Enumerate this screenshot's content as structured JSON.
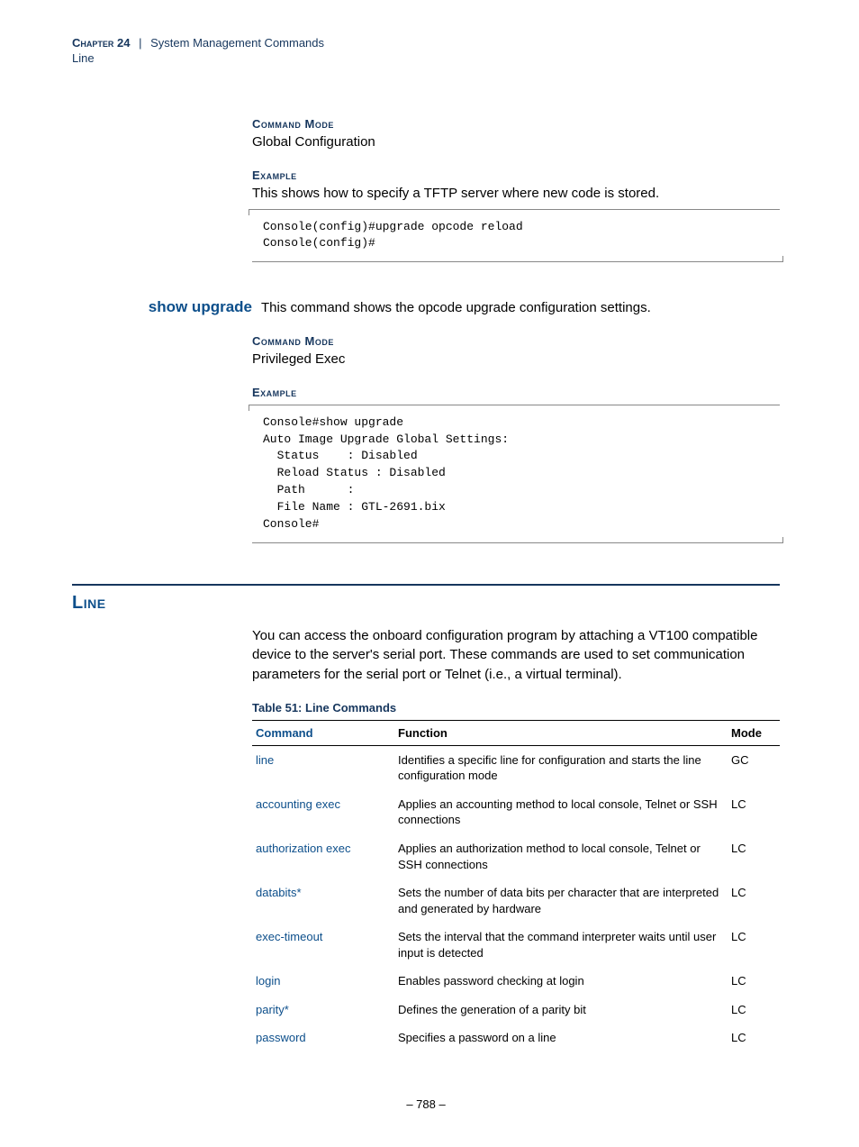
{
  "header": {
    "chapter": "Chapter 24",
    "separator": "|",
    "title": "System Management Commands",
    "subtitle": "Line"
  },
  "section1": {
    "heading1": "Command Mode",
    "body1": "Global Configuration",
    "heading2": "Example",
    "body2": "This shows how to specify a TFTP server where new code is stored.",
    "code": "Console(config)#upgrade opcode reload\nConsole(config)#"
  },
  "command1": {
    "name": "show upgrade",
    "desc": "This command shows the opcode upgrade configuration settings."
  },
  "section2": {
    "heading1": "Command Mode",
    "body1": "Privileged Exec",
    "heading2": "Example",
    "code": "Console#show upgrade\nAuto Image Upgrade Global Settings:\n  Status    : Disabled\n  Reload Status : Disabled\n  Path      :\n  File Name : GTL-2691.bix\nConsole#"
  },
  "line_section": {
    "title": "Line",
    "intro": "You can access the onboard configuration program by attaching a VT100 compatible device to the server's serial port. These commands are used to set communication parameters for the serial port or Telnet (i.e., a virtual terminal).",
    "table_caption": "Table 51: Line Commands",
    "columns": {
      "c1": "Command",
      "c2": "Function",
      "c3": "Mode"
    },
    "rows": [
      {
        "cmd": "line",
        "func": "Identifies a specific line for configuration and starts the line configuration mode",
        "mode": "GC"
      },
      {
        "cmd": "accounting exec",
        "func": "Applies an accounting method to local console, Telnet or SSH connections",
        "mode": "LC"
      },
      {
        "cmd": "authorization exec",
        "func": "Applies an authorization method to local console, Telnet or SSH connections",
        "mode": "LC"
      },
      {
        "cmd": "databits*",
        "func": "Sets the number of data bits per character that are interpreted and generated by hardware",
        "mode": "LC"
      },
      {
        "cmd": "exec-timeout",
        "func": "Sets the interval that the command interpreter waits until user input is detected",
        "mode": "LC"
      },
      {
        "cmd": "login",
        "func": "Enables password checking at login",
        "mode": "LC"
      },
      {
        "cmd": "parity*",
        "func": "Defines the generation of a parity bit",
        "mode": "LC"
      },
      {
        "cmd": "password",
        "func": "Specifies a password on a line",
        "mode": "LC"
      }
    ]
  },
  "page_number": "–  788  –"
}
